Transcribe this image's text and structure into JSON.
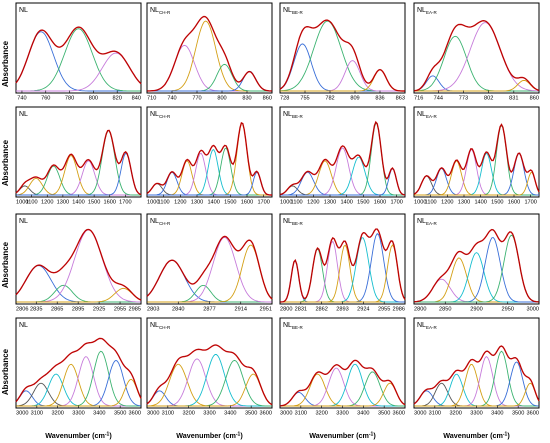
{
  "figure": {
    "ylabel": "Absorbance",
    "xlabel": "Wavenumber (cm",
    "xlabel_sup": "-1",
    "xlabel_close": ")"
  },
  "chart_data": [
    {
      "type": "line",
      "label": "NL",
      "sub": "",
      "ticks": [
        740,
        760,
        780,
        800,
        820,
        840
      ],
      "xlim": [
        735,
        840
      ],
      "fit_color": "#d40000",
      "series": [
        {
          "color": "#3a6fd8",
          "peak": 0.2,
          "amp": 0.78,
          "width": 0.1
        },
        {
          "color": "#3cb371",
          "peak": 0.5,
          "amp": 0.82,
          "width": 0.11
        },
        {
          "color": "#c77ddb",
          "peak": 0.8,
          "amp": 0.5,
          "width": 0.11
        }
      ]
    },
    {
      "type": "line",
      "label": "NL",
      "sub": "CH-R",
      "ticks": [
        710,
        740,
        770,
        800,
        830,
        860
      ],
      "xlim": [
        710,
        860
      ],
      "fit_color": "#d40000",
      "series": [
        {
          "color": "#c77ddb",
          "peak": 0.3,
          "amp": 0.6,
          "width": 0.08
        },
        {
          "color": "#d4a017",
          "peak": 0.47,
          "amp": 0.92,
          "width": 0.08
        },
        {
          "color": "#3cb371",
          "peak": 0.62,
          "amp": 0.35,
          "width": 0.06
        },
        {
          "color": "#3a6fd8",
          "peak": 0.82,
          "amp": 0.26,
          "width": 0.05
        }
      ]
    },
    {
      "type": "line",
      "label": "NL",
      "sub": "BE-R",
      "ticks": [
        728,
        755,
        782,
        809,
        836,
        863
      ],
      "xlim": [
        728,
        863
      ],
      "fit_color": "#d40000",
      "series": [
        {
          "color": "#3a6fd8",
          "peak": 0.18,
          "amp": 0.62,
          "width": 0.07
        },
        {
          "color": "#3cb371",
          "peak": 0.38,
          "amp": 0.92,
          "width": 0.11
        },
        {
          "color": "#c77ddb",
          "peak": 0.58,
          "amp": 0.4,
          "width": 0.06
        },
        {
          "color": "#d4a017",
          "peak": 0.8,
          "amp": 0.28,
          "width": 0.05
        }
      ]
    },
    {
      "type": "line",
      "label": "NL",
      "sub": "EA-R",
      "ticks": [
        716,
        744,
        773,
        802,
        831,
        860
      ],
      "xlim": [
        716,
        860
      ],
      "fit_color": "#d40000",
      "series": [
        {
          "color": "#3a6fd8",
          "peak": 0.15,
          "amp": 0.2,
          "width": 0.05
        },
        {
          "color": "#3cb371",
          "peak": 0.33,
          "amp": 0.72,
          "width": 0.09
        },
        {
          "color": "#c77ddb",
          "peak": 0.57,
          "amp": 0.9,
          "width": 0.12
        },
        {
          "color": "#d4a017",
          "peak": 0.88,
          "amp": 0.14,
          "width": 0.05
        }
      ]
    },
    {
      "type": "line",
      "label": "NL",
      "sub": "",
      "ticks": [
        1000,
        1100,
        1200,
        1300,
        1400,
        1500,
        1600,
        1700
      ],
      "xlim": [
        1000,
        1800
      ],
      "fit_color": "#d40000",
      "series": [
        {
          "color": "#555555",
          "peak": 0.07,
          "amp": 0.12,
          "width": 0.04
        },
        {
          "color": "#d4a017",
          "peak": 0.16,
          "amp": 0.22,
          "width": 0.05
        },
        {
          "color": "#3cb371",
          "peak": 0.3,
          "amp": 0.38,
          "width": 0.05
        },
        {
          "color": "#d4a017",
          "peak": 0.44,
          "amp": 0.52,
          "width": 0.05
        },
        {
          "color": "#c77ddb",
          "peak": 0.58,
          "amp": 0.45,
          "width": 0.05
        },
        {
          "color": "#3cb371",
          "peak": 0.74,
          "amp": 0.85,
          "width": 0.05
        },
        {
          "color": "#3a6fd8",
          "peak": 0.88,
          "amp": 0.55,
          "width": 0.04
        }
      ]
    },
    {
      "type": "line",
      "label": "NL",
      "sub": "CH-R",
      "ticks": [
        1000,
        1100,
        1200,
        1300,
        1400,
        1500,
        1600,
        1700
      ],
      "xlim": [
        1000,
        1750
      ],
      "fit_color": "#d40000",
      "series": [
        {
          "color": "#555555",
          "peak": 0.08,
          "amp": 0.15,
          "width": 0.04
        },
        {
          "color": "#3a6fd8",
          "peak": 0.2,
          "amp": 0.3,
          "width": 0.04
        },
        {
          "color": "#d4a017",
          "peak": 0.32,
          "amp": 0.45,
          "width": 0.04
        },
        {
          "color": "#c77ddb",
          "peak": 0.43,
          "amp": 0.55,
          "width": 0.04
        },
        {
          "color": "#17becf",
          "peak": 0.53,
          "amp": 0.6,
          "width": 0.04
        },
        {
          "color": "#3cb371",
          "peak": 0.63,
          "amp": 0.62,
          "width": 0.04
        },
        {
          "color": "#d4a017",
          "peak": 0.76,
          "amp": 0.95,
          "width": 0.04
        },
        {
          "color": "#3a6fd8",
          "peak": 0.88,
          "amp": 0.3,
          "width": 0.03
        }
      ]
    },
    {
      "type": "line",
      "label": "NL",
      "sub": "BE-R",
      "ticks": [
        1000,
        1100,
        1200,
        1300,
        1400,
        1500,
        1600,
        1700
      ],
      "xlim": [
        1000,
        1750
      ],
      "fit_color": "#d40000",
      "series": [
        {
          "color": "#555555",
          "peak": 0.1,
          "amp": 0.12,
          "width": 0.04
        },
        {
          "color": "#3a6fd8",
          "peak": 0.22,
          "amp": 0.3,
          "width": 0.05
        },
        {
          "color": "#d4a017",
          "peak": 0.36,
          "amp": 0.45,
          "width": 0.05
        },
        {
          "color": "#c77ddb",
          "peak": 0.5,
          "amp": 0.62,
          "width": 0.05
        },
        {
          "color": "#17becf",
          "peak": 0.63,
          "amp": 0.5,
          "width": 0.05
        },
        {
          "color": "#3cb371",
          "peak": 0.77,
          "amp": 0.95,
          "width": 0.04
        },
        {
          "color": "#3a6fd8",
          "peak": 0.9,
          "amp": 0.35,
          "width": 0.03
        }
      ]
    },
    {
      "type": "line",
      "label": "NL",
      "sub": "EA-R",
      "ticks": [
        1000,
        1100,
        1200,
        1300,
        1400,
        1500,
        1600,
        1700
      ],
      "xlim": [
        1000,
        1750
      ],
      "fit_color": "#d40000",
      "series": [
        {
          "color": "#555555",
          "peak": 0.1,
          "amp": 0.25,
          "width": 0.04
        },
        {
          "color": "#3a6fd8",
          "peak": 0.22,
          "amp": 0.35,
          "width": 0.04
        },
        {
          "color": "#d4a017",
          "peak": 0.34,
          "amp": 0.45,
          "width": 0.04
        },
        {
          "color": "#c77ddb",
          "peak": 0.46,
          "amp": 0.6,
          "width": 0.04
        },
        {
          "color": "#17becf",
          "peak": 0.58,
          "amp": 0.55,
          "width": 0.04
        },
        {
          "color": "#3cb371",
          "peak": 0.7,
          "amp": 0.92,
          "width": 0.04
        },
        {
          "color": "#3a6fd8",
          "peak": 0.84,
          "amp": 0.55,
          "width": 0.04
        },
        {
          "color": "#d4a017",
          "peak": 0.94,
          "amp": 0.3,
          "width": 0.03
        }
      ]
    },
    {
      "type": "line",
      "label": "NL",
      "sub": "",
      "ticks": [
        2806,
        2835,
        2865,
        2895,
        2925,
        2955,
        2985
      ],
      "xlim": [
        2806,
        2985
      ],
      "fit_color": "#d40000",
      "series": [
        {
          "color": "#3a6fd8",
          "peak": 0.18,
          "amp": 0.48,
          "width": 0.1
        },
        {
          "color": "#3cb371",
          "peak": 0.38,
          "amp": 0.22,
          "width": 0.07
        },
        {
          "color": "#c77ddb",
          "peak": 0.58,
          "amp": 0.95,
          "width": 0.11
        },
        {
          "color": "#d4a017",
          "peak": 0.86,
          "amp": 0.18,
          "width": 0.07
        }
      ]
    },
    {
      "type": "line",
      "label": "NL",
      "sub": "CH-R",
      "ticks": [
        2803,
        2840,
        2877,
        2914,
        2951
      ],
      "xlim": [
        2803,
        2951
      ],
      "fit_color": "#d40000",
      "series": [
        {
          "color": "#3a6fd8",
          "peak": 0.2,
          "amp": 0.55,
          "width": 0.1
        },
        {
          "color": "#3cb371",
          "peak": 0.45,
          "amp": 0.22,
          "width": 0.06
        },
        {
          "color": "#c77ddb",
          "peak": 0.62,
          "amp": 0.85,
          "width": 0.09
        },
        {
          "color": "#d4a017",
          "peak": 0.83,
          "amp": 0.75,
          "width": 0.07
        }
      ]
    },
    {
      "type": "line",
      "label": "NL",
      "sub": "BE-R",
      "ticks": [
        2800,
        2831,
        2862,
        2893,
        2924,
        2955,
        2986
      ],
      "xlim": [
        2800,
        2986
      ],
      "fit_color": "#d40000",
      "series": [
        {
          "color": "#3a6fd8",
          "peak": 0.12,
          "amp": 0.55,
          "width": 0.03
        },
        {
          "color": "#3cb371",
          "peak": 0.3,
          "amp": 0.7,
          "width": 0.04
        },
        {
          "color": "#c77ddb",
          "peak": 0.42,
          "amp": 0.8,
          "width": 0.04
        },
        {
          "color": "#d4a017",
          "peak": 0.52,
          "amp": 0.75,
          "width": 0.04
        },
        {
          "color": "#17becf",
          "peak": 0.66,
          "amp": 0.85,
          "width": 0.05
        },
        {
          "color": "#3a6fd8",
          "peak": 0.78,
          "amp": 0.9,
          "width": 0.05
        },
        {
          "color": "#d4a017",
          "peak": 0.9,
          "amp": 0.75,
          "width": 0.04
        }
      ]
    },
    {
      "type": "line",
      "label": "NL",
      "sub": "EA-R",
      "ticks": [
        2800,
        2850,
        2900,
        2950,
        3000
      ],
      "xlim": [
        2800,
        3000
      ],
      "fit_color": "#d40000",
      "series": [
        {
          "color": "#c77ddb",
          "peak": 0.22,
          "amp": 0.3,
          "width": 0.07
        },
        {
          "color": "#d4a017",
          "peak": 0.36,
          "amp": 0.58,
          "width": 0.06
        },
        {
          "color": "#17becf",
          "peak": 0.5,
          "amp": 0.65,
          "width": 0.06
        },
        {
          "color": "#3a6fd8",
          "peak": 0.63,
          "amp": 0.85,
          "width": 0.06
        },
        {
          "color": "#3cb371",
          "peak": 0.78,
          "amp": 0.88,
          "width": 0.06
        }
      ]
    },
    {
      "type": "line",
      "label": "NL",
      "sub": "",
      "ticks": [
        3000,
        3100,
        3200,
        3300,
        3400,
        3500,
        3600
      ],
      "xlim": [
        3000,
        3600
      ],
      "fit_color": "#d40000",
      "series": [
        {
          "color": "#3a6fd8",
          "peak": 0.08,
          "amp": 0.2,
          "width": 0.05
        },
        {
          "color": "#555555",
          "peak": 0.2,
          "amp": 0.3,
          "width": 0.06
        },
        {
          "color": "#17becf",
          "peak": 0.32,
          "amp": 0.42,
          "width": 0.06
        },
        {
          "color": "#d4a017",
          "peak": 0.44,
          "amp": 0.55,
          "width": 0.06
        },
        {
          "color": "#c77ddb",
          "peak": 0.56,
          "amp": 0.65,
          "width": 0.06
        },
        {
          "color": "#3cb371",
          "peak": 0.68,
          "amp": 0.72,
          "width": 0.06
        },
        {
          "color": "#3a6fd8",
          "peak": 0.8,
          "amp": 0.6,
          "width": 0.06
        },
        {
          "color": "#d4a017",
          "peak": 0.92,
          "amp": 0.35,
          "width": 0.05
        }
      ]
    },
    {
      "type": "line",
      "label": "NL",
      "sub": "CH-R",
      "ticks": [
        3000,
        3100,
        3200,
        3300,
        3400,
        3500,
        3600
      ],
      "xlim": [
        3000,
        3600
      ],
      "fit_color": "#d40000",
      "series": [
        {
          "color": "#3a6fd8",
          "peak": 0.1,
          "amp": 0.2,
          "width": 0.05
        },
        {
          "color": "#d4a017",
          "peak": 0.25,
          "amp": 0.55,
          "width": 0.07
        },
        {
          "color": "#c77ddb",
          "peak": 0.4,
          "amp": 0.62,
          "width": 0.07
        },
        {
          "color": "#17becf",
          "peak": 0.55,
          "amp": 0.68,
          "width": 0.07
        },
        {
          "color": "#3cb371",
          "peak": 0.7,
          "amp": 0.6,
          "width": 0.07
        },
        {
          "color": "#d4a017",
          "peak": 0.85,
          "amp": 0.42,
          "width": 0.06
        }
      ]
    },
    {
      "type": "line",
      "label": "NL",
      "sub": "BE-R",
      "ticks": [
        3000,
        3100,
        3200,
        3300,
        3400,
        3500,
        3600
      ],
      "xlim": [
        3000,
        3600
      ],
      "fit_color": "#d40000",
      "series": [
        {
          "color": "#3a6fd8",
          "peak": 0.15,
          "amp": 0.18,
          "width": 0.05
        },
        {
          "color": "#d4a017",
          "peak": 0.3,
          "amp": 0.42,
          "width": 0.06
        },
        {
          "color": "#c77ddb",
          "peak": 0.45,
          "amp": 0.5,
          "width": 0.06
        },
        {
          "color": "#17becf",
          "peak": 0.6,
          "amp": 0.55,
          "width": 0.06
        },
        {
          "color": "#3cb371",
          "peak": 0.74,
          "amp": 0.45,
          "width": 0.06
        },
        {
          "color": "#d4a017",
          "peak": 0.88,
          "amp": 0.3,
          "width": 0.05
        }
      ]
    },
    {
      "type": "line",
      "label": "NL",
      "sub": "EA-R",
      "ticks": [
        3000,
        3100,
        3200,
        3300,
        3400,
        3500,
        3600
      ],
      "xlim": [
        3000,
        3600
      ],
      "fit_color": "#d40000",
      "series": [
        {
          "color": "#3a6fd8",
          "peak": 0.1,
          "amp": 0.2,
          "width": 0.05
        },
        {
          "color": "#555555",
          "peak": 0.22,
          "amp": 0.3,
          "width": 0.05
        },
        {
          "color": "#17becf",
          "peak": 0.34,
          "amp": 0.42,
          "width": 0.05
        },
        {
          "color": "#d4a017",
          "peak": 0.46,
          "amp": 0.55,
          "width": 0.05
        },
        {
          "color": "#c77ddb",
          "peak": 0.58,
          "amp": 0.65,
          "width": 0.05
        },
        {
          "color": "#3cb371",
          "peak": 0.7,
          "amp": 0.72,
          "width": 0.05
        },
        {
          "color": "#3a6fd8",
          "peak": 0.82,
          "amp": 0.58,
          "width": 0.05
        },
        {
          "color": "#d4a017",
          "peak": 0.93,
          "amp": 0.3,
          "width": 0.04
        }
      ]
    }
  ]
}
